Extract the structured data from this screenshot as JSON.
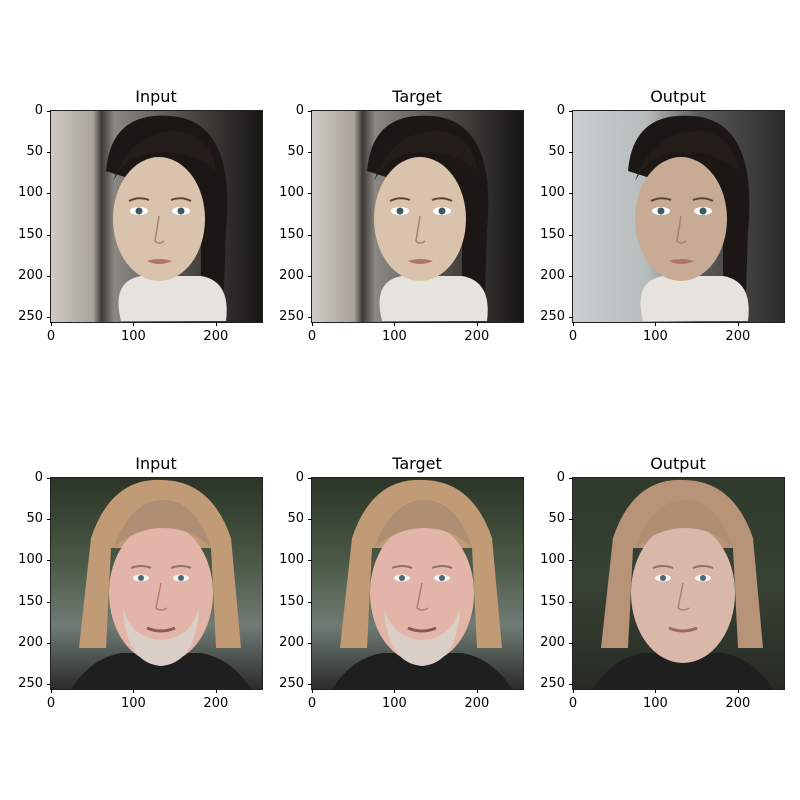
{
  "figure": {
    "rows": [
      {
        "panels": [
          {
            "title": "Input",
            "subject": "woman"
          },
          {
            "title": "Target",
            "subject": "woman"
          },
          {
            "title": "Output",
            "subject": "woman"
          }
        ]
      },
      {
        "panels": [
          {
            "title": "Input",
            "subject": "man"
          },
          {
            "title": "Target",
            "subject": "man"
          },
          {
            "title": "Output",
            "subject": "man"
          }
        ]
      }
    ],
    "axis": {
      "x_ticks": [
        "0",
        "100",
        "200"
      ],
      "y_ticks": [
        "0",
        "50",
        "100",
        "150",
        "200",
        "250"
      ]
    }
  }
}
